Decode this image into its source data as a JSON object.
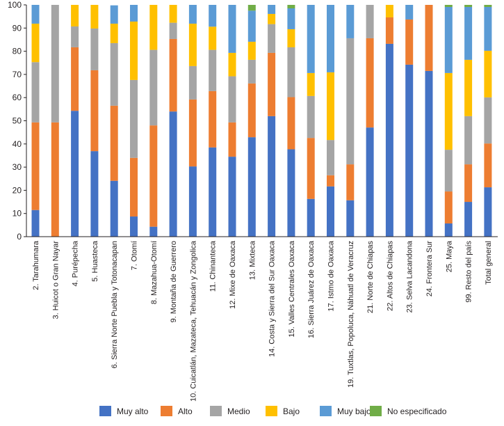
{
  "chart_data": {
    "type": "bar",
    "stacked": true,
    "title": "",
    "xlabel": "",
    "ylabel": "",
    "ylim": [
      0,
      100
    ],
    "yticks": [
      0,
      10,
      20,
      30,
      40,
      50,
      60,
      70,
      80,
      90,
      100
    ],
    "grid": false,
    "legend_position": "bottom",
    "categories": [
      "2. Tarahumara",
      "3. Huicot o Gran Nayar",
      "4. Purépecha",
      "5. Huasteca",
      "6. Sierra Norte Puebla y Totonacapan",
      "7. Otomí",
      "8. Mazahua-Otomí",
      "9. Montaña de Guerrero",
      "10. Cuicatlán, Mazateca, Tehuacán y Zongolica",
      "11. Chinanteca",
      "12. Mixe de Oaxaca",
      "13. Mixteca",
      "14. Costa y Sierra del Sur Oaxaca",
      "15. Valles Centrales Oaxaca",
      "16. Sierra Juárez de Oaxaca",
      "17. Istmo de Oaxaca",
      "19. Tuxtlas, Popoluca, Náhuatl de Veracruz",
      "21. Norte de Chiapas",
      "22. Altos de Chiapas",
      "23. Selva Lacandona",
      "24. Frontera Sur",
      "25. Maya",
      "99. Resto del país",
      "Total general"
    ],
    "series": [
      {
        "name": "Muy alto",
        "color": "#4472c4",
        "values": [
          11.5,
          0,
          54.3,
          36.9,
          24.1,
          8.7,
          4.3,
          54.0,
          30.3,
          38.5,
          34.5,
          42.9,
          52.0,
          37.7,
          16.3,
          21.7,
          15.7,
          47.1,
          83.2,
          74.2,
          71.5,
          5.7,
          15.0,
          21.3
        ]
      },
      {
        "name": "Alto",
        "color": "#ed7d31",
        "values": [
          37.8,
          49.3,
          27.4,
          34.9,
          32.4,
          25.3,
          43.7,
          31.3,
          28.9,
          24.3,
          14.8,
          23.2,
          27.3,
          22.5,
          26.3,
          4.8,
          15.5,
          38.5,
          11.4,
          19.5,
          28.5,
          13.8,
          16.2,
          18.9
        ]
      },
      {
        "name": "Medio",
        "color": "#a5a5a5",
        "values": [
          26.0,
          50.7,
          9.0,
          18.0,
          27.0,
          33.6,
          32.6,
          7.0,
          14.4,
          17.8,
          19.9,
          10.2,
          12.4,
          21.5,
          18.1,
          15.2,
          54.4,
          14.4,
          0,
          0,
          0,
          18.0,
          20.8,
          19.9
        ]
      },
      {
        "name": "Bajo",
        "color": "#ffc000",
        "values": [
          16.6,
          0,
          9.3,
          10.2,
          8.4,
          25.2,
          19.4,
          7.7,
          18.3,
          10.0,
          10.1,
          7.8,
          4.4,
          7.8,
          9.9,
          29.2,
          0,
          0,
          5.4,
          0,
          0,
          33.1,
          24.3,
          20.1
        ]
      },
      {
        "name": "Muy bajo",
        "color": "#5b9bd5",
        "values": [
          8.1,
          0,
          0,
          0,
          7.9,
          7.2,
          0,
          0,
          8.1,
          9.4,
          20.7,
          13.4,
          3.9,
          9.0,
          29.4,
          29.1,
          14.4,
          0,
          0,
          6.3,
          0,
          28.5,
          22.8,
          18.9
        ]
      },
      {
        "name": "No especificado",
        "color": "#70ad47",
        "values": [
          0,
          0,
          0,
          0,
          0,
          0,
          0,
          0,
          0,
          0,
          0,
          2.5,
          0,
          1.5,
          0,
          0,
          0,
          0,
          0,
          0,
          0,
          0.9,
          0.9,
          0.9
        ]
      }
    ]
  }
}
